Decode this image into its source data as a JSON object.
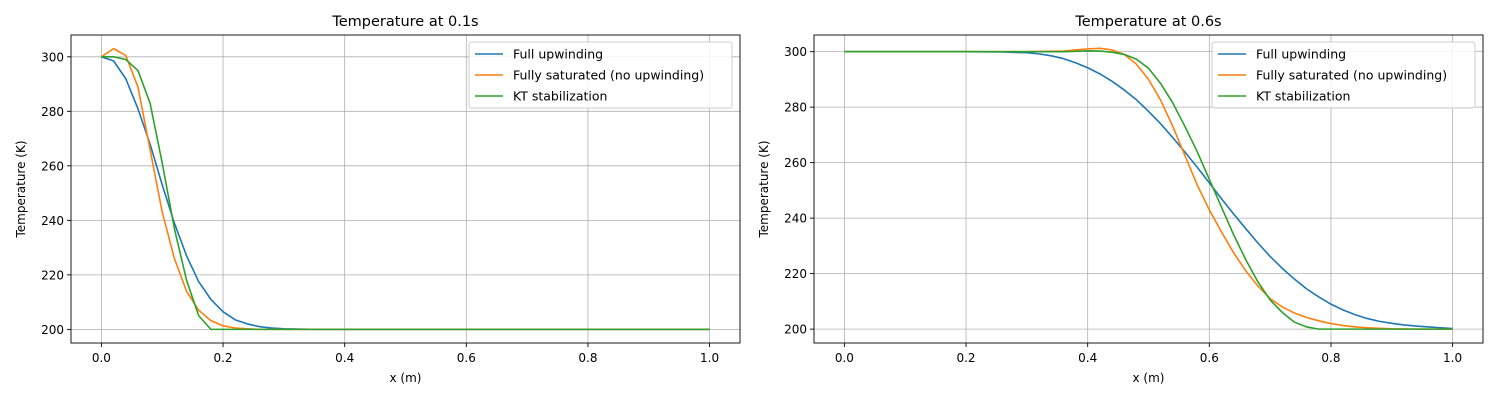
{
  "chart_data": [
    {
      "type": "line",
      "title": "Temperature at 0.1s",
      "xlabel": "x (m)",
      "ylabel": "Temperature (K)",
      "xlim": [
        -0.05,
        1.05
      ],
      "ylim": [
        195,
        308
      ],
      "xticks": [
        0.0,
        0.2,
        0.4,
        0.6,
        0.8,
        1.0
      ],
      "xtick_labels": [
        "0.0",
        "0.2",
        "0.4",
        "0.6",
        "0.8",
        "1.0"
      ],
      "yticks": [
        200,
        220,
        240,
        260,
        280,
        300
      ],
      "ytick_labels": [
        "200",
        "220",
        "240",
        "260",
        "280",
        "300"
      ],
      "grid": true,
      "legend_position": "top-right",
      "series": [
        {
          "name": "Full upwinding",
          "color": "#1f77b4",
          "x": [
            0,
            0.02,
            0.04,
            0.06,
            0.08,
            0.1,
            0.12,
            0.14,
            0.16,
            0.18,
            0.2,
            0.22,
            0.24,
            0.26,
            0.28,
            0.3,
            0.35,
            0.4,
            0.6,
            0.8,
            1.0
          ],
          "y": [
            300,
            298.5,
            292,
            281,
            268,
            253,
            239,
            227,
            217.5,
            211,
            206.5,
            203.5,
            202,
            201,
            200.5,
            200.2,
            200,
            200,
            200,
            200,
            200
          ]
        },
        {
          "name": "Fully saturated (no upwinding)",
          "color": "#ff7f0e",
          "x": [
            0,
            0.02,
            0.04,
            0.06,
            0.08,
            0.1,
            0.12,
            0.14,
            0.16,
            0.18,
            0.2,
            0.22,
            0.24,
            0.26,
            0.3,
            0.4,
            0.6,
            0.8,
            1.0
          ],
          "y": [
            300,
            303,
            300.5,
            289,
            266,
            243,
            226,
            214,
            207,
            203.2,
            201.3,
            200.5,
            200.2,
            200,
            200,
            200,
            200,
            200,
            200
          ]
        },
        {
          "name": "KT stabilization",
          "color": "#2ca02c",
          "x": [
            0,
            0.02,
            0.04,
            0.06,
            0.08,
            0.1,
            0.12,
            0.14,
            0.16,
            0.18,
            0.2,
            0.4,
            0.6,
            0.8,
            1.0
          ],
          "y": [
            300,
            300,
            299,
            295,
            283,
            261,
            237,
            218,
            205,
            200,
            200,
            200,
            200,
            200,
            200
          ]
        }
      ]
    },
    {
      "type": "line",
      "title": "Temperature at 0.6s",
      "xlabel": "x (m)",
      "ylabel": "Temperature (K)",
      "xlim": [
        -0.05,
        1.05
      ],
      "ylim": [
        195,
        306
      ],
      "xticks": [
        0.0,
        0.2,
        0.4,
        0.6,
        0.8,
        1.0
      ],
      "xtick_labels": [
        "0.0",
        "0.2",
        "0.4",
        "0.6",
        "0.8",
        "1.0"
      ],
      "yticks": [
        200,
        220,
        240,
        260,
        280,
        300
      ],
      "ytick_labels": [
        "200",
        "220",
        "240",
        "260",
        "280",
        "300"
      ],
      "grid": true,
      "legend_position": "top-right",
      "series": [
        {
          "name": "Full upwinding",
          "color": "#1f77b4",
          "x": [
            0,
            0.2,
            0.26,
            0.3,
            0.32,
            0.34,
            0.36,
            0.38,
            0.4,
            0.42,
            0.44,
            0.46,
            0.48,
            0.5,
            0.52,
            0.54,
            0.56,
            0.58,
            0.6,
            0.62,
            0.64,
            0.66,
            0.68,
            0.7,
            0.72,
            0.74,
            0.76,
            0.78,
            0.8,
            0.82,
            0.84,
            0.86,
            0.88,
            0.9,
            0.92,
            0.94,
            0.96,
            0.98,
            1.0
          ],
          "y": [
            300,
            300,
            299.9,
            299.6,
            299.2,
            298.5,
            297.5,
            296,
            294.2,
            292,
            289.3,
            286.2,
            282.7,
            278.5,
            274,
            269,
            263.8,
            258.4,
            252.7,
            247,
            241.5,
            236.2,
            231,
            226.2,
            221.9,
            218,
            214.5,
            211.6,
            209,
            206.9,
            205.2,
            203.8,
            202.8,
            202.1,
            201.5,
            201.1,
            200.8,
            200.5,
            200.2
          ]
        },
        {
          "name": "Fully saturated (no upwinding)",
          "color": "#ff7f0e",
          "x": [
            0,
            0.3,
            0.36,
            0.38,
            0.4,
            0.42,
            0.44,
            0.46,
            0.48,
            0.5,
            0.52,
            0.54,
            0.56,
            0.58,
            0.6,
            0.62,
            0.64,
            0.66,
            0.68,
            0.7,
            0.72,
            0.74,
            0.76,
            0.78,
            0.8,
            0.82,
            0.84,
            0.86,
            0.88,
            0.9,
            0.95,
            1.0
          ],
          "y": [
            300,
            300,
            300.2,
            300.6,
            301,
            301.2,
            300.6,
            299,
            295.5,
            290,
            282.5,
            273,
            262.5,
            252,
            243,
            235,
            227.5,
            221,
            215.5,
            211,
            208,
            205.8,
            204.2,
            203,
            202,
            201.3,
            200.8,
            200.5,
            200.3,
            200.1,
            200,
            200
          ]
        },
        {
          "name": "KT stabilization",
          "color": "#2ca02c",
          "x": [
            0,
            0.36,
            0.38,
            0.4,
            0.42,
            0.44,
            0.46,
            0.48,
            0.5,
            0.52,
            0.54,
            0.56,
            0.58,
            0.6,
            0.62,
            0.64,
            0.66,
            0.68,
            0.7,
            0.72,
            0.74,
            0.76,
            0.78,
            0.8,
            0.9,
            1.0
          ],
          "y": [
            300,
            300,
            300.1,
            300.3,
            300.2,
            299.8,
            299,
            297.3,
            294,
            288.5,
            281.5,
            273,
            264,
            254,
            244,
            234,
            225,
            217,
            210.5,
            206,
            202.5,
            200.8,
            200,
            200,
            200,
            200
          ]
        }
      ]
    }
  ]
}
